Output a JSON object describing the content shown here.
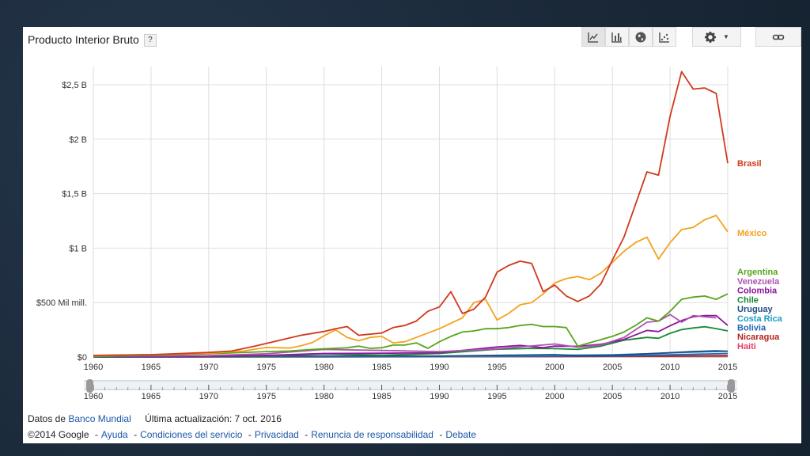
{
  "title": "Producto Interior Bruto",
  "help_label": "?",
  "toolbar": [
    "line-chart-icon",
    "bar-chart-icon",
    "globe-icon",
    "scatter-icon",
    "gear-icon",
    "link-icon"
  ],
  "chart_data": {
    "type": "line",
    "x_range": [
      1960,
      2015
    ],
    "ylim": [
      0,
      2.6
    ],
    "y_ticks": [
      {
        "v": 0,
        "label": "$0"
      },
      {
        "v": 0.5,
        "label": "$500 Mil mill."
      },
      {
        "v": 1.0,
        "label": "$1 B"
      },
      {
        "v": 1.5,
        "label": "$1,5 B"
      },
      {
        "v": 2.0,
        "label": "$2 B"
      },
      {
        "v": 2.5,
        "label": "$2,5 B"
      }
    ],
    "x_ticks": [
      1960,
      1965,
      1970,
      1975,
      1980,
      1985,
      1990,
      1995,
      2000,
      2005,
      2010,
      2015
    ],
    "range_ticks": [
      "1960",
      "1965",
      "1970",
      "1975",
      "1980",
      "1985",
      "1990",
      "1995",
      "2000",
      "2005",
      "2010",
      "2015"
    ],
    "series": [
      {
        "name": "Brasil",
        "color": "#d0391d",
        "points": [
          [
            1960,
            0.015
          ],
          [
            1965,
            0.022
          ],
          [
            1970,
            0.042
          ],
          [
            1972,
            0.055
          ],
          [
            1974,
            0.1
          ],
          [
            1976,
            0.15
          ],
          [
            1978,
            0.2
          ],
          [
            1980,
            0.235
          ],
          [
            1981,
            0.26
          ],
          [
            1982,
            0.28
          ],
          [
            1983,
            0.2
          ],
          [
            1985,
            0.22
          ],
          [
            1986,
            0.27
          ],
          [
            1987,
            0.29
          ],
          [
            1988,
            0.33
          ],
          [
            1989,
            0.42
          ],
          [
            1990,
            0.46
          ],
          [
            1991,
            0.6
          ],
          [
            1992,
            0.4
          ],
          [
            1993,
            0.44
          ],
          [
            1994,
            0.55
          ],
          [
            1995,
            0.78
          ],
          [
            1996,
            0.84
          ],
          [
            1997,
            0.88
          ],
          [
            1998,
            0.86
          ],
          [
            1999,
            0.6
          ],
          [
            2000,
            0.66
          ],
          [
            2001,
            0.56
          ],
          [
            2002,
            0.51
          ],
          [
            2003,
            0.56
          ],
          [
            2004,
            0.67
          ],
          [
            2005,
            0.89
          ],
          [
            2006,
            1.1
          ],
          [
            2007,
            1.4
          ],
          [
            2008,
            1.7
          ],
          [
            2009,
            1.67
          ],
          [
            2010,
            2.21
          ],
          [
            2011,
            2.62
          ],
          [
            2012,
            2.46
          ],
          [
            2013,
            2.47
          ],
          [
            2014,
            2.42
          ],
          [
            2015,
            1.78
          ]
        ]
      },
      {
        "name": "México",
        "color": "#f4a21e",
        "points": [
          [
            1960,
            0.013
          ],
          [
            1965,
            0.022
          ],
          [
            1970,
            0.035
          ],
          [
            1973,
            0.055
          ],
          [
            1975,
            0.088
          ],
          [
            1977,
            0.082
          ],
          [
            1978,
            0.103
          ],
          [
            1979,
            0.134
          ],
          [
            1980,
            0.195
          ],
          [
            1981,
            0.25
          ],
          [
            1982,
            0.18
          ],
          [
            1983,
            0.15
          ],
          [
            1984,
            0.18
          ],
          [
            1985,
            0.19
          ],
          [
            1986,
            0.13
          ],
          [
            1987,
            0.14
          ],
          [
            1988,
            0.18
          ],
          [
            1989,
            0.22
          ],
          [
            1990,
            0.26
          ],
          [
            1991,
            0.31
          ],
          [
            1992,
            0.36
          ],
          [
            1993,
            0.5
          ],
          [
            1994,
            0.53
          ],
          [
            1995,
            0.34
          ],
          [
            1996,
            0.4
          ],
          [
            1997,
            0.48
          ],
          [
            1998,
            0.5
          ],
          [
            1999,
            0.58
          ],
          [
            2000,
            0.68
          ],
          [
            2001,
            0.72
          ],
          [
            2002,
            0.74
          ],
          [
            2003,
            0.71
          ],
          [
            2004,
            0.77
          ],
          [
            2005,
            0.87
          ],
          [
            2006,
            0.97
          ],
          [
            2007,
            1.05
          ],
          [
            2008,
            1.1
          ],
          [
            2009,
            0.9
          ],
          [
            2010,
            1.05
          ],
          [
            2011,
            1.17
          ],
          [
            2012,
            1.19
          ],
          [
            2013,
            1.26
          ],
          [
            2014,
            1.3
          ],
          [
            2015,
            1.15
          ]
        ]
      },
      {
        "name": "Argentina",
        "color": "#56a51a",
        "points": [
          [
            1960,
            0.005
          ],
          [
            1970,
            0.03
          ],
          [
            1975,
            0.05
          ],
          [
            1977,
            0.055
          ],
          [
            1979,
            0.07
          ],
          [
            1980,
            0.075
          ],
          [
            1982,
            0.085
          ],
          [
            1983,
            0.1
          ],
          [
            1984,
            0.08
          ],
          [
            1985,
            0.085
          ],
          [
            1986,
            0.11
          ],
          [
            1987,
            0.11
          ],
          [
            1988,
            0.13
          ],
          [
            1989,
            0.08
          ],
          [
            1990,
            0.14
          ],
          [
            1991,
            0.19
          ],
          [
            1992,
            0.23
          ],
          [
            1993,
            0.24
          ],
          [
            1994,
            0.26
          ],
          [
            1995,
            0.26
          ],
          [
            1996,
            0.27
          ],
          [
            1997,
            0.29
          ],
          [
            1998,
            0.3
          ],
          [
            1999,
            0.28
          ],
          [
            2000,
            0.28
          ],
          [
            2001,
            0.27
          ],
          [
            2002,
            0.1
          ],
          [
            2003,
            0.13
          ],
          [
            2004,
            0.16
          ],
          [
            2005,
            0.19
          ],
          [
            2006,
            0.23
          ],
          [
            2007,
            0.29
          ],
          [
            2008,
            0.36
          ],
          [
            2009,
            0.33
          ],
          [
            2010,
            0.42
          ],
          [
            2011,
            0.53
          ],
          [
            2012,
            0.55
          ],
          [
            2013,
            0.56
          ],
          [
            2014,
            0.53
          ],
          [
            2015,
            0.58
          ]
        ]
      },
      {
        "name": "Venezuela",
        "color": "#ac53b0",
        "points": [
          [
            1960,
            0.008
          ],
          [
            1970,
            0.013
          ],
          [
            1975,
            0.03
          ],
          [
            1980,
            0.07
          ],
          [
            1985,
            0.06
          ],
          [
            1990,
            0.05
          ],
          [
            1995,
            0.075
          ],
          [
            2000,
            0.12
          ],
          [
            2002,
            0.09
          ],
          [
            2004,
            0.11
          ],
          [
            2006,
            0.18
          ],
          [
            2008,
            0.32
          ],
          [
            2009,
            0.33
          ],
          [
            2010,
            0.39
          ],
          [
            2011,
            0.32
          ],
          [
            2012,
            0.38
          ],
          [
            2013,
            0.37
          ],
          [
            2014,
            0.36
          ]
        ]
      },
      {
        "name": "Colombia",
        "color": "#8e16a0",
        "points": [
          [
            1960,
            0.004
          ],
          [
            1970,
            0.008
          ],
          [
            1975,
            0.015
          ],
          [
            1980,
            0.033
          ],
          [
            1985,
            0.035
          ],
          [
            1990,
            0.04
          ],
          [
            1995,
            0.092
          ],
          [
            1997,
            0.107
          ],
          [
            1999,
            0.086
          ],
          [
            2000,
            0.1
          ],
          [
            2002,
            0.098
          ],
          [
            2004,
            0.117
          ],
          [
            2006,
            0.162
          ],
          [
            2008,
            0.244
          ],
          [
            2009,
            0.234
          ],
          [
            2010,
            0.287
          ],
          [
            2011,
            0.335
          ],
          [
            2012,
            0.37
          ],
          [
            2013,
            0.38
          ],
          [
            2014,
            0.38
          ],
          [
            2015,
            0.29
          ]
        ]
      },
      {
        "name": "Chile",
        "color": "#188a35",
        "points": [
          [
            1960,
            0.004
          ],
          [
            1970,
            0.009
          ],
          [
            1975,
            0.008
          ],
          [
            1980,
            0.03
          ],
          [
            1985,
            0.017
          ],
          [
            1990,
            0.033
          ],
          [
            1995,
            0.072
          ],
          [
            1998,
            0.079
          ],
          [
            2000,
            0.077
          ],
          [
            2002,
            0.07
          ],
          [
            2004,
            0.1
          ],
          [
            2006,
            0.155
          ],
          [
            2008,
            0.18
          ],
          [
            2009,
            0.172
          ],
          [
            2010,
            0.218
          ],
          [
            2011,
            0.252
          ],
          [
            2012,
            0.267
          ],
          [
            2013,
            0.278
          ],
          [
            2014,
            0.261
          ],
          [
            2015,
            0.24
          ]
        ]
      },
      {
        "name": "Uruguay",
        "color": "#1c4d85",
        "points": [
          [
            1960,
            0.001
          ],
          [
            1980,
            0.01
          ],
          [
            1990,
            0.009
          ],
          [
            2000,
            0.022
          ],
          [
            2002,
            0.013
          ],
          [
            2005,
            0.017
          ],
          [
            2008,
            0.03
          ],
          [
            2010,
            0.04
          ],
          [
            2012,
            0.051
          ],
          [
            2014,
            0.057
          ],
          [
            2015,
            0.053
          ]
        ]
      },
      {
        "name": "Costa Rica",
        "color": "#1a9bc9",
        "points": [
          [
            1960,
            0.0005
          ],
          [
            1980,
            0.005
          ],
          [
            1990,
            0.006
          ],
          [
            2000,
            0.016
          ],
          [
            2005,
            0.02
          ],
          [
            2008,
            0.03
          ],
          [
            2010,
            0.037
          ],
          [
            2012,
            0.045
          ],
          [
            2014,
            0.05
          ],
          [
            2015,
            0.054
          ]
        ]
      },
      {
        "name": "Bolivia",
        "color": "#2266b8",
        "points": [
          [
            1960,
            0.0004
          ],
          [
            1980,
            0.005
          ],
          [
            1990,
            0.005
          ],
          [
            2000,
            0.008
          ],
          [
            2005,
            0.01
          ],
          [
            2010,
            0.02
          ],
          [
            2015,
            0.033
          ]
        ]
      },
      {
        "name": "Nicaragua",
        "color": "#b3241c",
        "points": [
          [
            1960,
            0.0003
          ],
          [
            1980,
            0.002
          ],
          [
            2000,
            0.005
          ],
          [
            2010,
            0.009
          ],
          [
            2015,
            0.013
          ]
        ]
      },
      {
        "name": "Haiti",
        "color": "#e33e6b",
        "points": [
          [
            1960,
            0.0002
          ],
          [
            1980,
            0.001
          ],
          [
            2000,
            0.004
          ],
          [
            2010,
            0.007
          ],
          [
            2015,
            0.009
          ]
        ]
      }
    ]
  },
  "footer": {
    "prefix": "Datos de ",
    "source_link": "Banco Mundial",
    "updated": "Última actualización: 7 oct. 2016",
    "copyright": "©2014 Google",
    "dash": "-",
    "links": [
      "Ayuda",
      "Condiciones del servicio",
      "Privacidad",
      "Renuncia de responsabilidad",
      "Debate"
    ]
  }
}
